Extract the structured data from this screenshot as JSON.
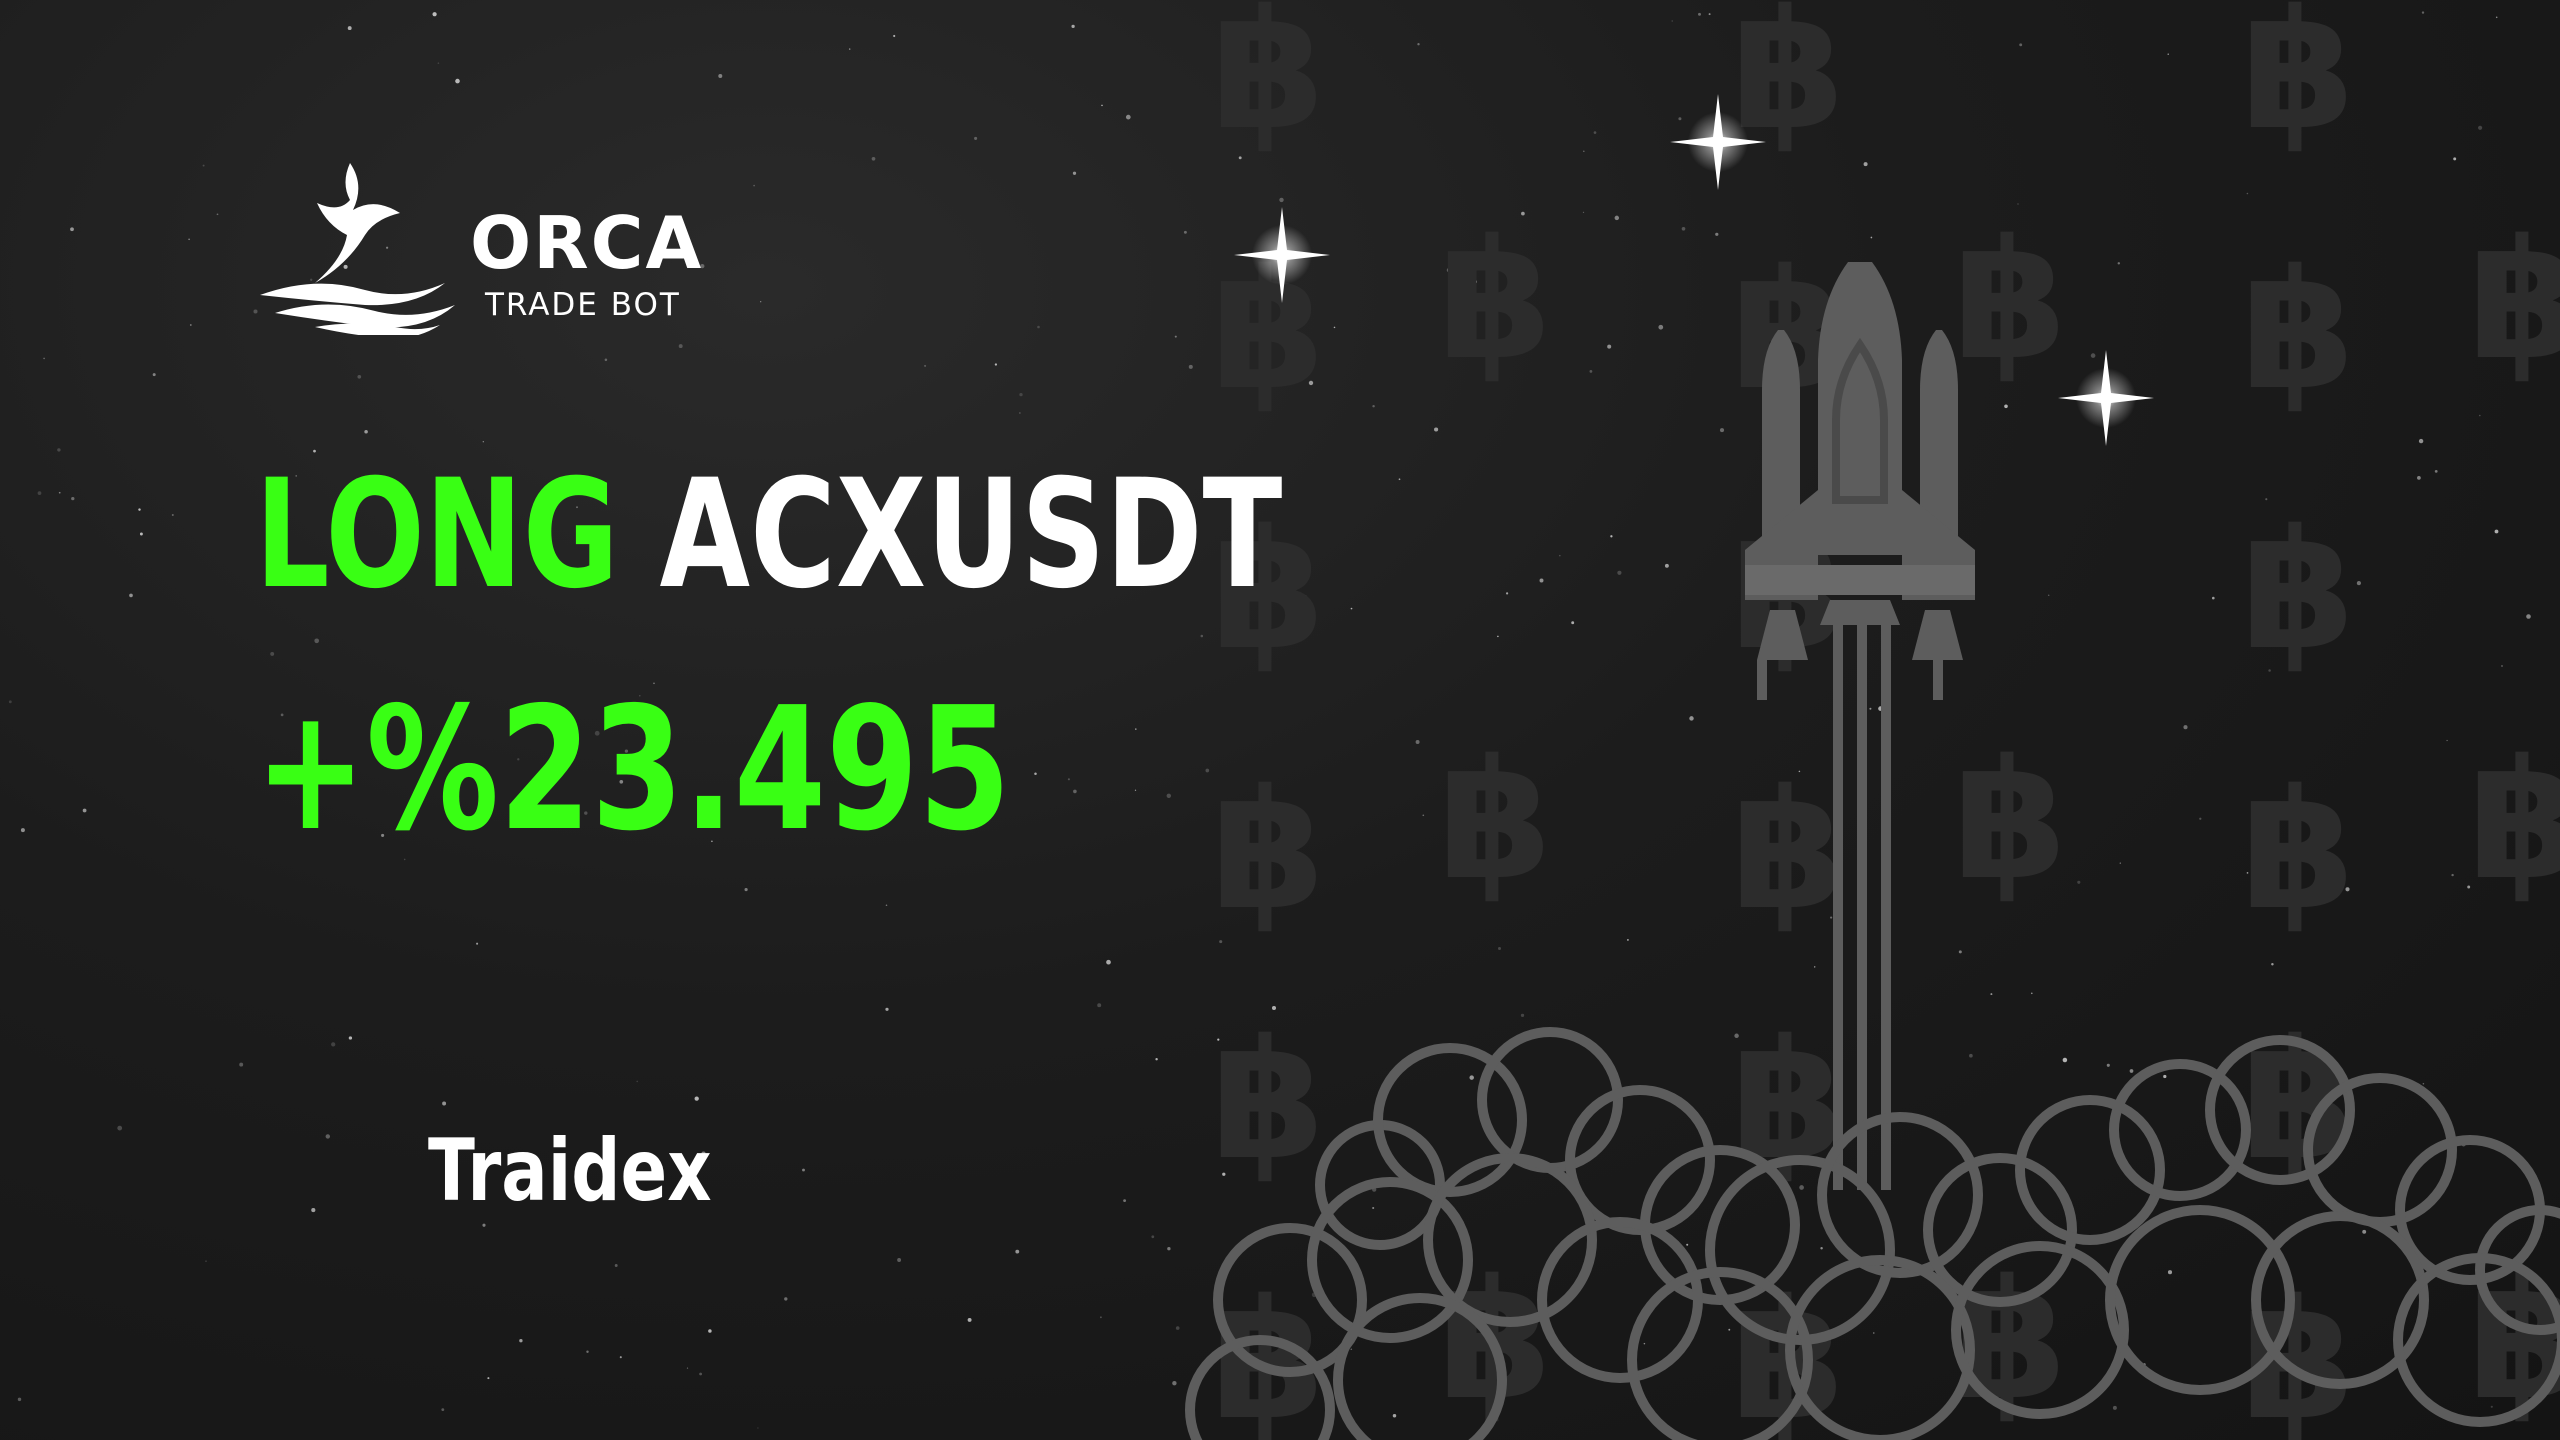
{
  "brand": {
    "name": "ORCA",
    "tagline": "TRADE BOT",
    "logo_icon": "whale-tail-icon"
  },
  "signal": {
    "direction": "LONG",
    "pair": "ACXUSDT",
    "profit": "+%23.495",
    "exchange": "Traidex"
  },
  "illustration": {
    "rocket_icon": "rocket-icon",
    "background_icon": "bitcoin-icon",
    "stars_icon": "sparkle-star-icon"
  },
  "colors": {
    "background": "#1b1b1b",
    "accent_green": "#39ff14",
    "text_white": "#ffffff",
    "illustration_gray": "#5d5d5d",
    "bitcoin_watermark": "#2a2a2a"
  }
}
